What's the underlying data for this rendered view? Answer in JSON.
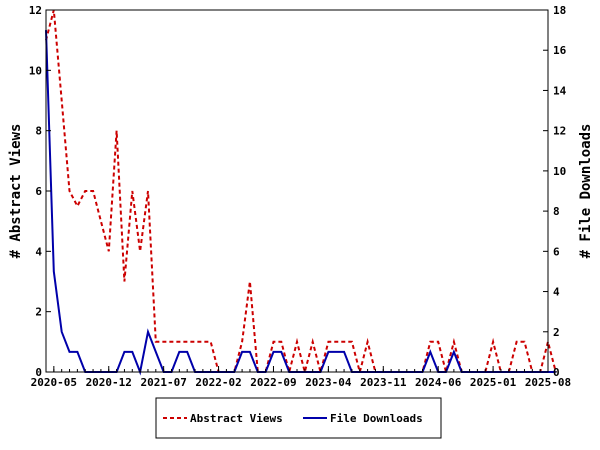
{
  "chart_data": {
    "type": "line",
    "x_ticks": [
      "2020-05",
      "2020-12",
      "2021-07",
      "2022-02",
      "2022-09",
      "2023-04",
      "2023-11",
      "2024-06",
      "2025-01",
      "2025-08"
    ],
    "x_range": [
      "2020-04",
      "2025-08"
    ],
    "y_left": {
      "label": "# Abstract Views",
      "range": [
        0,
        12
      ],
      "ticks": [
        "0",
        "2",
        "4",
        "6",
        "8",
        "10",
        "12"
      ]
    },
    "y_right": {
      "label": "# File Downloads",
      "range": [
        0,
        18
      ],
      "ticks": [
        "0",
        "2",
        "4",
        "6",
        "8",
        "10",
        "12",
        "14",
        "16",
        "18"
      ]
    },
    "legend_position": "bottom-center",
    "series": [
      {
        "name": "Abstract Views",
        "axis": "left",
        "color": "#cc0000",
        "style": "dashed",
        "points": [
          [
            "2020-04",
            11
          ],
          [
            "2020-05",
            12
          ],
          [
            "2020-06",
            9
          ],
          [
            "2020-07",
            6
          ],
          [
            "2020-08",
            5.5
          ],
          [
            "2020-09",
            6
          ],
          [
            "2020-10",
            6
          ],
          [
            "2020-11",
            5
          ],
          [
            "2020-12",
            4
          ],
          [
            "2021-01",
            8
          ],
          [
            "2021-02",
            3
          ],
          [
            "2021-03",
            6
          ],
          [
            "2021-04",
            4
          ],
          [
            "2021-05",
            6
          ],
          [
            "2021-06",
            1
          ],
          [
            "2021-07",
            1
          ],
          [
            "2021-08",
            1
          ],
          [
            "2021-09",
            1
          ],
          [
            "2021-10",
            1
          ],
          [
            "2021-11",
            1
          ],
          [
            "2021-12",
            1
          ],
          [
            "2022-01",
            1
          ],
          [
            "2022-02",
            0
          ],
          [
            "2022-03",
            0
          ],
          [
            "2022-04",
            0
          ],
          [
            "2022-05",
            1
          ],
          [
            "2022-06",
            3
          ],
          [
            "2022-07",
            0
          ],
          [
            "2022-08",
            0
          ],
          [
            "2022-09",
            1
          ],
          [
            "2022-10",
            1
          ],
          [
            "2022-11",
            0
          ],
          [
            "2022-12",
            1
          ],
          [
            "2023-01",
            0
          ],
          [
            "2023-02",
            1
          ],
          [
            "2023-03",
            0
          ],
          [
            "2023-04",
            1
          ],
          [
            "2023-05",
            1
          ],
          [
            "2023-06",
            1
          ],
          [
            "2023-07",
            1
          ],
          [
            "2023-08",
            0
          ],
          [
            "2023-09",
            1
          ],
          [
            "2023-10",
            0
          ],
          [
            "2023-11",
            0
          ],
          [
            "2023-12",
            0
          ],
          [
            "2024-01",
            0
          ],
          [
            "2024-02",
            0
          ],
          [
            "2024-03",
            0
          ],
          [
            "2024-04",
            0
          ],
          [
            "2024-05",
            1
          ],
          [
            "2024-06",
            1
          ],
          [
            "2024-07",
            0
          ],
          [
            "2024-08",
            1
          ],
          [
            "2024-09",
            0
          ],
          [
            "2024-10",
            0
          ],
          [
            "2024-11",
            0
          ],
          [
            "2024-12",
            0
          ],
          [
            "2025-01",
            1
          ],
          [
            "2025-02",
            0
          ],
          [
            "2025-03",
            0
          ],
          [
            "2025-04",
            1
          ],
          [
            "2025-05",
            1
          ],
          [
            "2025-06",
            0
          ],
          [
            "2025-07",
            0
          ],
          [
            "2025-08",
            1
          ],
          [
            "2025-09",
            0
          ]
        ]
      },
      {
        "name": "File Downloads",
        "axis": "right",
        "color": "#0000aa",
        "style": "solid",
        "points": [
          [
            "2020-04",
            17
          ],
          [
            "2020-05",
            5
          ],
          [
            "2020-06",
            2
          ],
          [
            "2020-07",
            1
          ],
          [
            "2020-08",
            1
          ],
          [
            "2020-09",
            0
          ],
          [
            "2020-10",
            0
          ],
          [
            "2020-11",
            0
          ],
          [
            "2020-12",
            0
          ],
          [
            "2021-01",
            0
          ],
          [
            "2021-02",
            1
          ],
          [
            "2021-03",
            1
          ],
          [
            "2021-04",
            0
          ],
          [
            "2021-05",
            2
          ],
          [
            "2021-06",
            1
          ],
          [
            "2021-07",
            0
          ],
          [
            "2021-08",
            0
          ],
          [
            "2021-09",
            1
          ],
          [
            "2021-10",
            1
          ],
          [
            "2021-11",
            0
          ],
          [
            "2021-12",
            0
          ],
          [
            "2022-01",
            0
          ],
          [
            "2022-02",
            0
          ],
          [
            "2022-03",
            0
          ],
          [
            "2022-04",
            0
          ],
          [
            "2022-05",
            1
          ],
          [
            "2022-06",
            1
          ],
          [
            "2022-07",
            0
          ],
          [
            "2022-08",
            0
          ],
          [
            "2022-09",
            1
          ],
          [
            "2022-10",
            1
          ],
          [
            "2022-11",
            0
          ],
          [
            "2022-12",
            0
          ],
          [
            "2023-01",
            0
          ],
          [
            "2023-02",
            0
          ],
          [
            "2023-03",
            0
          ],
          [
            "2023-04",
            1
          ],
          [
            "2023-05",
            1
          ],
          [
            "2023-06",
            1
          ],
          [
            "2023-07",
            0
          ],
          [
            "2023-08",
            0
          ],
          [
            "2023-09",
            0
          ],
          [
            "2023-10",
            0
          ],
          [
            "2023-11",
            0
          ],
          [
            "2023-12",
            0
          ],
          [
            "2024-01",
            0
          ],
          [
            "2024-02",
            0
          ],
          [
            "2024-03",
            0
          ],
          [
            "2024-04",
            0
          ],
          [
            "2024-05",
            1
          ],
          [
            "2024-06",
            0
          ],
          [
            "2024-07",
            0
          ],
          [
            "2024-08",
            1
          ],
          [
            "2024-09",
            0
          ],
          [
            "2024-10",
            0
          ],
          [
            "2024-11",
            0
          ],
          [
            "2024-12",
            0
          ],
          [
            "2025-01",
            0
          ],
          [
            "2025-02",
            0
          ],
          [
            "2025-03",
            0
          ],
          [
            "2025-04",
            0
          ],
          [
            "2025-05",
            0
          ],
          [
            "2025-06",
            0
          ],
          [
            "2025-07",
            0
          ],
          [
            "2025-08",
            0
          ],
          [
            "2025-09",
            0
          ]
        ]
      }
    ]
  }
}
